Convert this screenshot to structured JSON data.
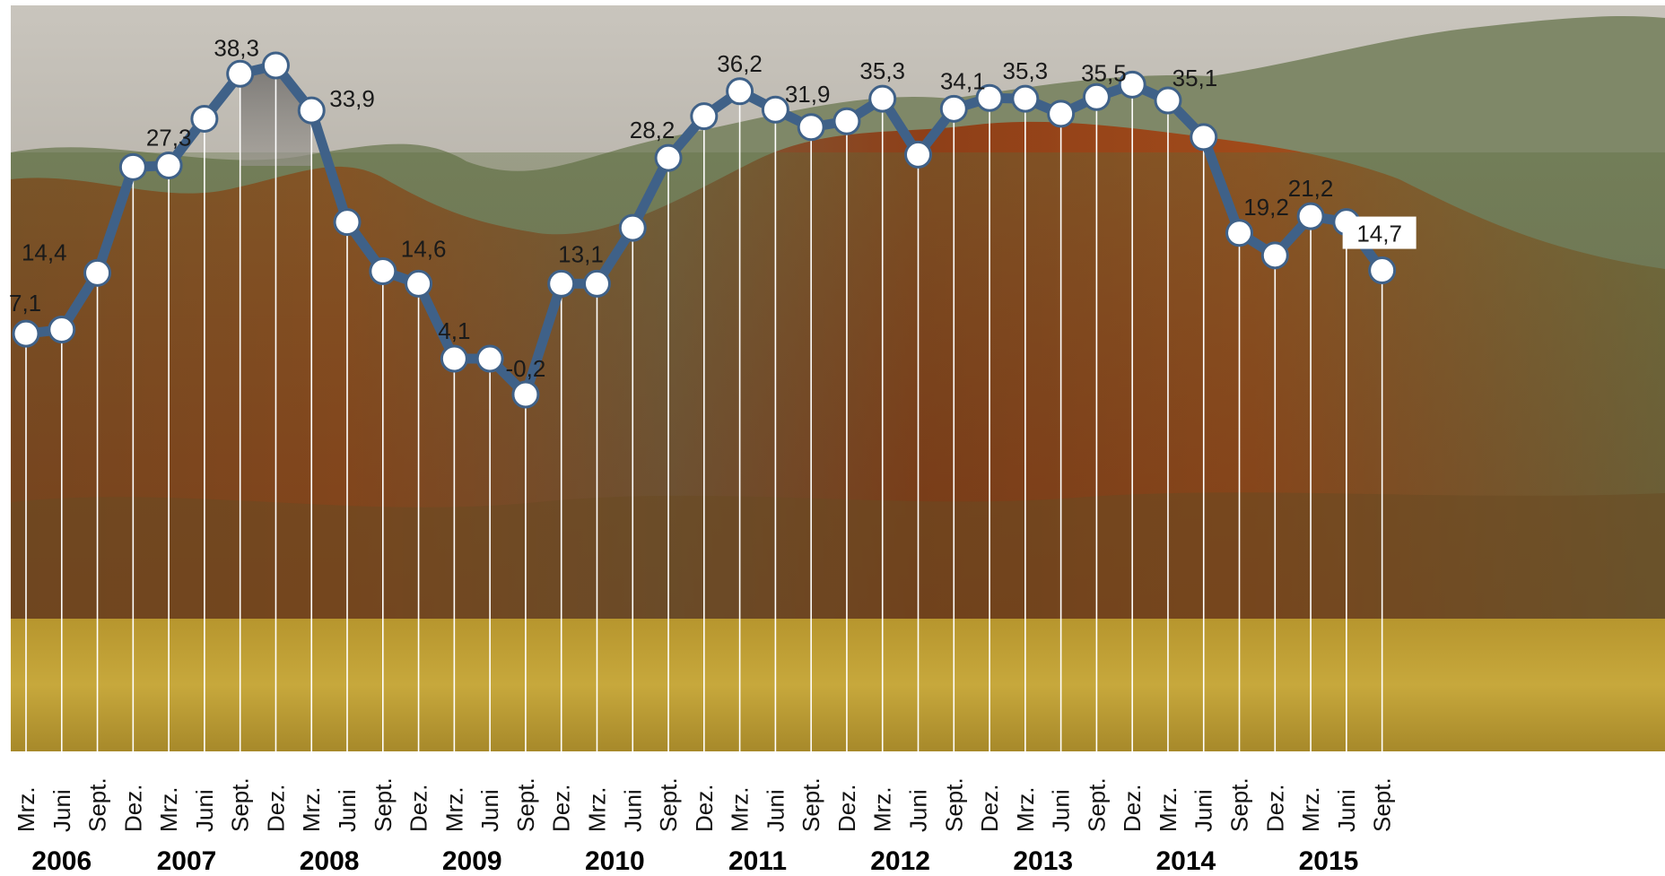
{
  "chart_data": {
    "type": "line",
    "title": "",
    "xlabel": "",
    "ylabel": "",
    "ylim": [
      -10,
      45
    ],
    "grid": "vertical drop lines",
    "legend": "none",
    "colors": {
      "line": "#3f6188",
      "marker_fill": "#ffffff",
      "marker_stroke": "#3f6188",
      "drop_line": "#ffffff",
      "peak_fill": "#7a7a7a",
      "label_box": "#ffffff"
    },
    "categories": [
      "Mrz.",
      "Juni",
      "Sept.",
      "Dez.",
      "Mrz.",
      "Juni",
      "Sept.",
      "Dez.",
      "Mrz.",
      "Juni",
      "Sept.",
      "Dez.",
      "Mrz.",
      "Juni",
      "Sept.",
      "Dez.",
      "Mrz.",
      "Juni",
      "Sept.",
      "Dez.",
      "Mrz.",
      "Juni",
      "Sept.",
      "Dez.",
      "Mrz.",
      "Juni",
      "Sept.",
      "Dez.",
      "Mrz.",
      "Juni",
      "Sept.",
      "Dez.",
      "Mrz.",
      "Juni",
      "Sept.",
      "Dez.",
      "Mrz.",
      "Juni",
      "Sept."
    ],
    "years": [
      {
        "label": "2006",
        "start": 0,
        "end": 2
      },
      {
        "label": "2007",
        "start": 3,
        "end": 6
      },
      {
        "label": "2008",
        "start": 7,
        "end": 10
      },
      {
        "label": "2009",
        "start": 11,
        "end": 14
      },
      {
        "label": "2010",
        "start": 15,
        "end": 18
      },
      {
        "label": "2011",
        "start": 19,
        "end": 22
      },
      {
        "label": "2012",
        "start": 23,
        "end": 26
      },
      {
        "label": "2013",
        "start": 27,
        "end": 30
      },
      {
        "label": "2014",
        "start": 31,
        "end": 34
      },
      {
        "label": "2015",
        "start": 35,
        "end": 38
      }
    ],
    "series": [
      {
        "values": [
          7.1,
          7.6,
          14.4,
          27.1,
          27.3,
          32.9,
          38.3,
          39.3,
          33.9,
          20.5,
          14.6,
          13.1,
          4.1,
          4.1,
          -0.2,
          13.1,
          13.1,
          19.8,
          28.2,
          33.2,
          36.2,
          34.0,
          31.9,
          32.6,
          35.3,
          28.6,
          34.1,
          35.4,
          35.3,
          33.5,
          35.5,
          37.0,
          35.1,
          30.7,
          19.2,
          16.5,
          21.2,
          20.5,
          14.7
        ],
        "data_labels": {
          "0": "7,1",
          "2": "14,4",
          "4": "27,3",
          "6": "38,3",
          "8": "33,9",
          "10": "14,6",
          "12": "4,1",
          "14": "-0,2",
          "16": "13,1",
          "18": "28,2",
          "20": "36,2",
          "22": "31,9",
          "24": "35,3",
          "26": "34,1",
          "28": "35,3",
          "30": "35,5",
          "32": "35,1",
          "34": "19,2",
          "36": "21,2",
          "38": "14,7"
        }
      }
    ]
  }
}
